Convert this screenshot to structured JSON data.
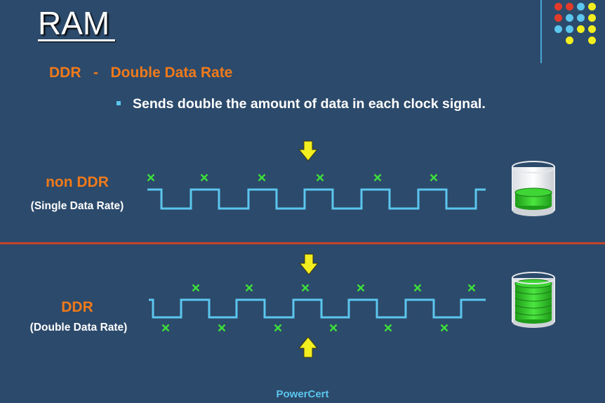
{
  "slide": {
    "title": "RAM",
    "subtitle": "DDR   -   Double Data Rate",
    "bullet": "Sends double the amount of data in each clock signal.",
    "footer": "PowerCert"
  },
  "non_ddr": {
    "label": "non DDR",
    "sublabel": "(Single Data Rate)",
    "transfers_per_cycle": 1
  },
  "ddr": {
    "label": "DDR",
    "sublabel": "(Double Data Rate)",
    "transfers_per_cycle": 2
  },
  "colors": {
    "background": "#2c4a6b",
    "accent_orange": "#f07a1a",
    "signal_line": "#5bc6ee",
    "marker_green": "#3ee03a",
    "arrow_yellow": "#f3ee1f",
    "divider_red": "#c2452b"
  },
  "icons": {
    "arrow": "down-arrow-icon",
    "marker": "x-mark-icon",
    "container": "data-cylinder-icon"
  }
}
